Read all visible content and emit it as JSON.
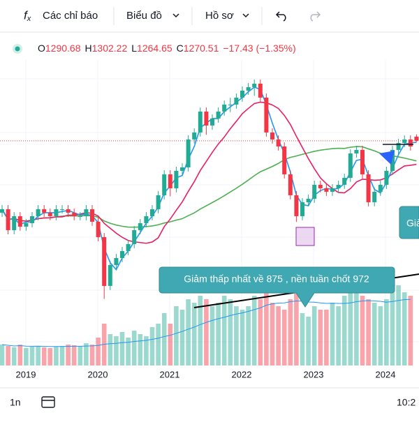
{
  "toolbar": {
    "indicators": "Các chỉ báo",
    "chart": "Biểu đồ",
    "profile": "Hồ sơ"
  },
  "chart_data": {
    "type": "candlestick",
    "legend": {
      "labels": [
        "O",
        "H",
        "L",
        "C"
      ],
      "values": [
        1290.68,
        1302.22,
        1264.65,
        1270.51
      ],
      "change": "−17.43 (−1.35%)"
    },
    "candles": [
      [
        920,
        957,
        900,
        937
      ],
      [
        937,
        957,
        815,
        835
      ],
      [
        835,
        923,
        815,
        903
      ],
      [
        903,
        923,
        832,
        852
      ],
      [
        852,
        889,
        832,
        869
      ],
      [
        869,
        923,
        849,
        903
      ],
      [
        903,
        957,
        883,
        937
      ],
      [
        937,
        957,
        900,
        920
      ],
      [
        920,
        940,
        883,
        903
      ],
      [
        903,
        957,
        883,
        937
      ],
      [
        937,
        957,
        917,
        937
      ],
      [
        937,
        957,
        900,
        920
      ],
      [
        920,
        940,
        883,
        903
      ],
      [
        903,
        923,
        883,
        903
      ],
      [
        903,
        957,
        883,
        937
      ],
      [
        937,
        957,
        856,
        876
      ],
      [
        876,
        896,
        781,
        801
      ],
      [
        801,
        821,
        500,
        563
      ],
      [
        563,
        685,
        543,
        665
      ],
      [
        665,
        719,
        645,
        699
      ],
      [
        699,
        753,
        679,
        733
      ],
      [
        733,
        787,
        713,
        767
      ],
      [
        767,
        855,
        747,
        835
      ],
      [
        835,
        889,
        815,
        869
      ],
      [
        869,
        923,
        849,
        903
      ],
      [
        903,
        957,
        883,
        937
      ],
      [
        937,
        1025,
        917,
        1005
      ],
      [
        1005,
        1127,
        985,
        1107
      ],
      [
        1107,
        1127,
        1000,
        1039
      ],
      [
        1039,
        1144,
        1019,
        1124
      ],
      [
        1124,
        1161,
        1104,
        1141
      ],
      [
        1141,
        1297,
        1121,
        1277
      ],
      [
        1277,
        1331,
        1257,
        1311
      ],
      [
        1311,
        1433,
        1291,
        1413
      ],
      [
        1413,
        1433,
        1300,
        1345
      ],
      [
        1345,
        1399,
        1325,
        1379
      ],
      [
        1379,
        1433,
        1359,
        1413
      ],
      [
        1413,
        1467,
        1393,
        1447
      ],
      [
        1447,
        1480,
        1410,
        1447
      ],
      [
        1447,
        1501,
        1427,
        1481
      ],
      [
        1481,
        1535,
        1461,
        1515
      ],
      [
        1515,
        1552,
        1495,
        1532
      ],
      [
        1532,
        1569,
        1490,
        1549
      ],
      [
        1549,
        1569,
        1461,
        1481
      ],
      [
        1481,
        1501,
        1291,
        1311
      ],
      [
        1311,
        1331,
        1257,
        1277
      ],
      [
        1277,
        1297,
        1223,
        1243
      ],
      [
        1243,
        1263,
        1087,
        1107
      ],
      [
        1107,
        1127,
        985,
        1005
      ],
      [
        1005,
        1025,
        875,
        903
      ],
      [
        903,
        991,
        883,
        971
      ],
      [
        971,
        1008,
        951,
        988
      ],
      [
        988,
        1076,
        968,
        1056
      ],
      [
        1056,
        1076,
        1019,
        1039
      ],
      [
        1039,
        1059,
        1002,
        1022
      ],
      [
        1022,
        1059,
        1002,
        1039
      ],
      [
        1039,
        1076,
        1019,
        1056
      ],
      [
        1056,
        1110,
        1036,
        1090
      ],
      [
        1090,
        1229,
        1070,
        1209
      ],
      [
        1209,
        1246,
        1189,
        1226
      ],
      [
        1226,
        1246,
        1087,
        1107
      ],
      [
        1107,
        1127,
        951,
        971
      ],
      [
        971,
        1042,
        951,
        1022
      ],
      [
        1022,
        1076,
        1002,
        1056
      ],
      [
        1056,
        1144,
        1036,
        1124
      ],
      [
        1124,
        1246,
        1104,
        1226
      ],
      [
        1226,
        1280,
        1206,
        1260
      ],
      [
        1260,
        1297,
        1240,
        1277
      ],
      [
        1277,
        1297,
        1223,
        1243
      ]
    ],
    "volume": [
      30,
      28,
      26,
      30,
      25,
      27,
      28,
      26,
      25,
      27,
      28,
      30,
      29,
      28,
      32,
      30,
      40,
      60,
      45,
      42,
      48,
      40,
      50,
      45,
      42,
      55,
      60,
      75,
      60,
      85,
      80,
      95,
      90,
      100,
      95,
      85,
      90,
      100,
      95,
      85,
      80,
      85,
      100,
      95,
      120,
      90,
      85,
      80,
      95,
      105,
      75,
      70,
      85,
      80,
      80,
      90,
      85,
      100,
      110,
      120,
      100,
      95,
      90,
      85,
      95,
      110,
      115,
      105,
      100
    ],
    "annotation": "Giảm thấp nhất về 875 , nền tuần chốt 972",
    "annotation_2": "Giả",
    "x_labels": [
      "2019",
      "2020",
      "2021",
      "2022",
      "2023",
      "2024"
    ]
  },
  "footer": {
    "interval": "1n",
    "time": "10:2"
  }
}
